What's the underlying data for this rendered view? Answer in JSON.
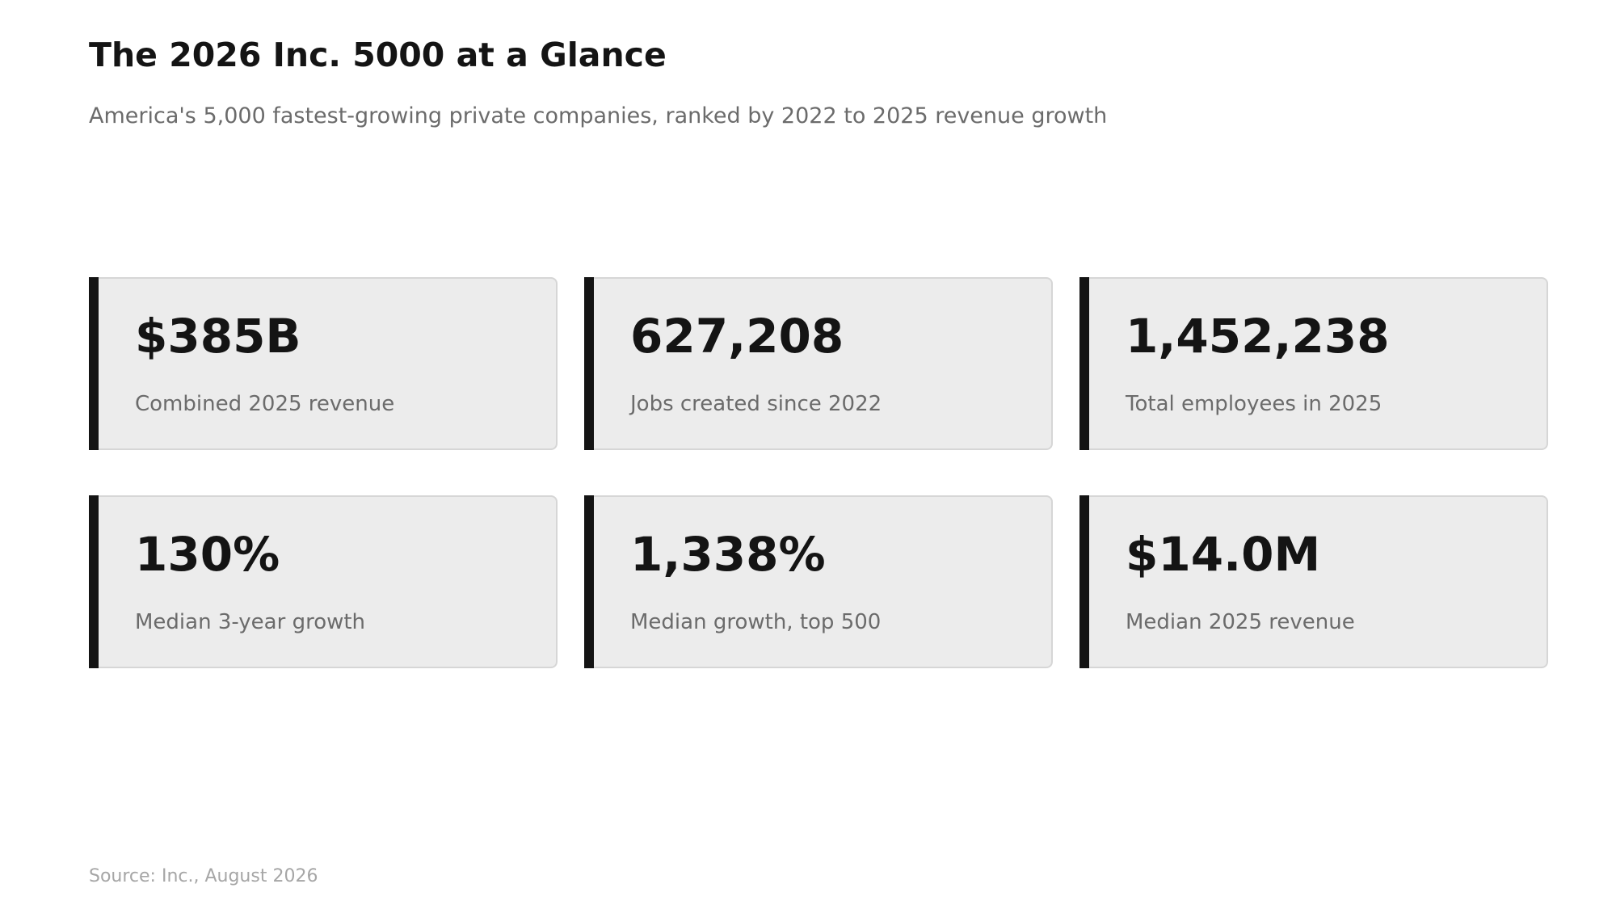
{
  "header": {
    "title": "The 2026 Inc. 5000 at a Glance",
    "subtitle": "America's 5,000 fastest-growing private companies, ranked by 2022 to 2025 revenue growth"
  },
  "stats": [
    {
      "value": "$385B",
      "label": "Combined 2025 revenue"
    },
    {
      "value": "627,208",
      "label": "Jobs created since 2022"
    },
    {
      "value": "1,452,238",
      "label": "Total employees in 2025"
    },
    {
      "value": "130%",
      "label": "Median 3-year growth"
    },
    {
      "value": "1,338%",
      "label": "Median growth, top 500"
    },
    {
      "value": "$14.0M",
      "label": "Median 2025 revenue"
    }
  ],
  "footer": {
    "source": "Source: Inc., August 2026"
  },
  "colors": {
    "accent_bar": "#141414",
    "card_background": "#ececec",
    "card_border": "#d6d6d6",
    "muted_text": "#6b6b6b"
  }
}
